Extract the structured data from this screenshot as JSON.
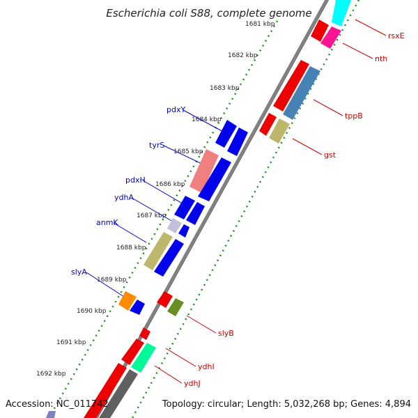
{
  "header": {
    "title": "Escherichia coli S88, complete genome"
  },
  "footer": {
    "accession": "Accession: NC_011742",
    "summary": "Topology: circular; Length: 5,032,268 bp; Genes: 4,894"
  },
  "scale_labels": [
    "1681 kbp",
    "1682 kbp",
    "1683 kbp",
    "1684 kbp",
    "1685 kbp",
    "1686 kbp",
    "1687 kbp",
    "1688 kbp",
    "1689 kbp",
    "1690 kbp",
    "1691 kbp",
    "1692 kbp"
  ],
  "left_gene_labels": [
    "pdxY",
    "tyrS",
    "pdxH",
    "ydhA",
    "anmK",
    "slyA"
  ],
  "right_gene_labels": [
    "rsxE",
    "nth",
    "tppB",
    "gst",
    "slyB",
    "ydhI",
    "ydhJ"
  ],
  "colors": {
    "backbone": "#808080",
    "ticks": "#228B22",
    "left_label": "#0000cc",
    "right_label": "#cc0000",
    "blue": "#0000ee",
    "red": "#ee0000",
    "pink": "#f08080",
    "khaki": "#bdb76b",
    "steel": "#4682b4",
    "cyan": "#00ffff",
    "magenta": "#ff1493",
    "orange": "#ff8c00",
    "olive": "#6b8e23",
    "lavender": "#c0c0d8",
    "green": "#00fa9a"
  }
}
